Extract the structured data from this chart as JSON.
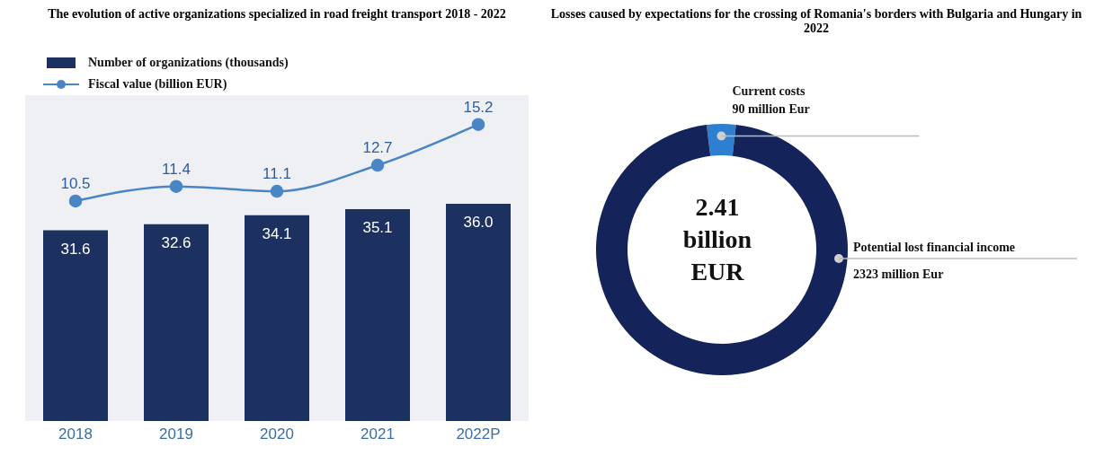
{
  "chart_data": [
    {
      "type": "bar",
      "title": "The evolution of active organizations specialized in road freight transport 2018 - 2022",
      "categories": [
        "2018",
        "2019",
        "2020",
        "2021",
        "2022P"
      ],
      "series": [
        {
          "name": "Number of organizations (thousands)",
          "type": "bar",
          "color": "#1c3160",
          "values": [
            31.6,
            32.6,
            34.1,
            35.1,
            36.0
          ],
          "value_labels": [
            "31.6",
            "32.6",
            "34.1",
            "35.1",
            "36.0"
          ]
        },
        {
          "name": "Fiscal value (billion EUR)",
          "type": "line",
          "axis": "y2",
          "color": "#4a86c5",
          "values": [
            10.5,
            11.4,
            11.1,
            12.7,
            15.2
          ],
          "value_labels": [
            "10.5",
            "11.4",
            "11.1",
            "12.7",
            "15.2"
          ]
        }
      ],
      "ylim": [
        0,
        54
      ],
      "y2lim": [
        -3,
        17
      ],
      "marker": "circle",
      "legend": "top left"
    },
    {
      "type": "donut",
      "title": "Losses caused by expectations for the crossing of Romania's borders with Bulgaria and Hungary in 2022",
      "categories": [
        "Current costs",
        "Potential lost financial income"
      ],
      "values": [
        90,
        2323
      ],
      "value_labels": [
        "90 million Eur",
        "2323 million Eur"
      ],
      "colors": [
        "#2f7fd0",
        "#14245a"
      ],
      "annotations": [
        "2.41 billion EUR"
      ]
    }
  ]
}
